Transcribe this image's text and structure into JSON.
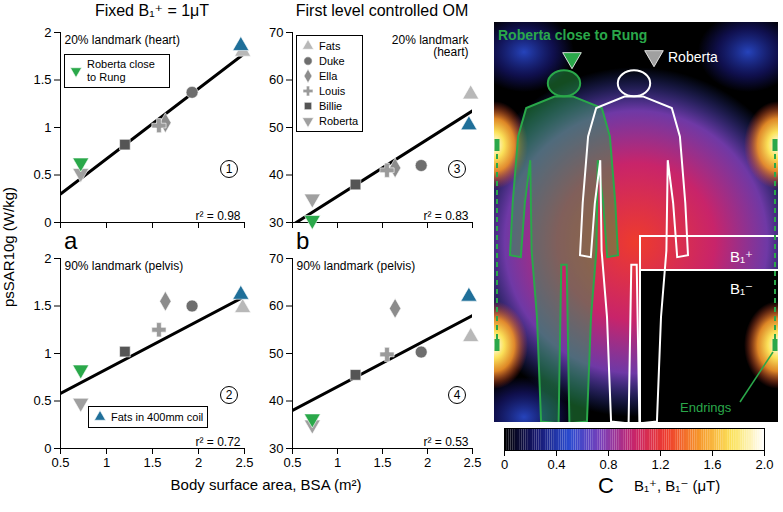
{
  "chart_data": [
    {
      "type": "scatter",
      "title": "20% landmark (heart)",
      "panel_number": "1",
      "r2_label": "r² = 0.98",
      "xlim": [
        0.5,
        2.5
      ],
      "xticks": [
        0.5,
        1,
        1.5,
        2,
        2.5
      ],
      "ylim": [
        0,
        2
      ],
      "yticks": [
        0,
        0.5,
        1,
        1.5,
        2
      ],
      "tick_labels": "y",
      "grid": false,
      "legend": "top-left",
      "legend_items": [
        "Roberta close to Rung"
      ],
      "series": [
        {
          "name": "Fats",
          "color": "#b8b8b8",
          "marker": "triangle",
          "x": [
            2.48
          ],
          "values": [
            1.8
          ]
        },
        {
          "name": "Duke",
          "color": "#6e6e6e",
          "marker": "circle",
          "x": [
            1.93
          ],
          "values": [
            1.37
          ]
        },
        {
          "name": "Ella",
          "color": "#8c8c8c",
          "marker": "diamond",
          "x": [
            1.64
          ],
          "values": [
            1.05
          ]
        },
        {
          "name": "Louis",
          "color": "#9a9a9a",
          "marker": "plus",
          "x": [
            1.57
          ],
          "values": [
            1.02
          ]
        },
        {
          "name": "Billie",
          "color": "#555555",
          "marker": "square",
          "x": [
            1.2
          ],
          "values": [
            0.82
          ]
        },
        {
          "name": "Roberta",
          "color": "#a0a0a0",
          "marker": "triangle-down",
          "x": [
            0.72
          ],
          "values": [
            0.52
          ]
        },
        {
          "name": "Roberta close to Rung",
          "color": "#2aa84a",
          "marker": "triangle-down",
          "x": [
            0.72
          ],
          "values": [
            0.63
          ]
        },
        {
          "name": "Fats in 400mm coil",
          "color": "#1f6f99",
          "marker": "triangle",
          "x": [
            2.46
          ],
          "values": [
            1.86
          ]
        }
      ],
      "fit": {
        "x": [
          0.5,
          2.5
        ],
        "values": [
          0.3,
          1.78
        ],
        "color": "#000000"
      }
    },
    {
      "type": "scatter",
      "title": "90% landmark (pelvis)",
      "panel_number": "2",
      "r2_label": "r² = 0.72",
      "xlim": [
        0.5,
        2.5
      ],
      "xticks": [
        0.5,
        1,
        1.5,
        2,
        2.5
      ],
      "ylim": [
        0,
        2
      ],
      "yticks": [
        0,
        0.5,
        1,
        1.5,
        2
      ],
      "grid": false,
      "legend": "bottom-left",
      "legend_items": [
        "Fats in 400mm coil"
      ],
      "series": [
        {
          "name": "Fats",
          "color": "#b8b8b8",
          "marker": "triangle",
          "x": [
            2.48
          ],
          "values": [
            1.48
          ]
        },
        {
          "name": "Duke",
          "color": "#6e6e6e",
          "marker": "circle",
          "x": [
            1.93
          ],
          "values": [
            1.5
          ]
        },
        {
          "name": "Ella",
          "color": "#8c8c8c",
          "marker": "diamond",
          "x": [
            1.64
          ],
          "values": [
            1.55
          ]
        },
        {
          "name": "Louis",
          "color": "#9a9a9a",
          "marker": "plus",
          "x": [
            1.57
          ],
          "values": [
            1.25
          ]
        },
        {
          "name": "Billie",
          "color": "#555555",
          "marker": "square",
          "x": [
            1.2
          ],
          "values": [
            1.02
          ]
        },
        {
          "name": "Roberta",
          "color": "#a0a0a0",
          "marker": "triangle-down",
          "x": [
            0.72
          ],
          "values": [
            0.48
          ]
        },
        {
          "name": "Roberta close to Rung",
          "color": "#2aa84a",
          "marker": "triangle-down",
          "x": [
            0.72
          ],
          "values": [
            0.83
          ]
        },
        {
          "name": "Fats in 400mm coil",
          "color": "#1f6f99",
          "marker": "triangle",
          "x": [
            2.46
          ],
          "values": [
            1.62
          ]
        }
      ],
      "fit": {
        "x": [
          0.5,
          2.5
        ],
        "values": [
          0.58,
          1.6
        ],
        "color": "#000000"
      }
    },
    {
      "type": "scatter",
      "title": "20% landmark (heart)",
      "panel_number": "3",
      "r2_label": "r² = 0.83",
      "xlim": [
        0.5,
        2.5
      ],
      "xticks": [
        0.5,
        1,
        1.5,
        2,
        2.5
      ],
      "ylim": [
        30,
        70
      ],
      "yticks": [
        30,
        40,
        50,
        60,
        70
      ],
      "tick_labels": "y",
      "grid": false,
      "legend": "top-left",
      "legend_items": [
        "Fats",
        "Duke",
        "Ella",
        "Louis",
        "Billie",
        "Roberta"
      ],
      "series": [
        {
          "name": "Fats",
          "color": "#b8b8b8",
          "marker": "triangle",
          "x": [
            2.48
          ],
          "values": [
            57
          ]
        },
        {
          "name": "Duke",
          "color": "#6e6e6e",
          "marker": "circle",
          "x": [
            1.93
          ],
          "values": [
            42
          ]
        },
        {
          "name": "Ella",
          "color": "#8c8c8c",
          "marker": "diamond",
          "x": [
            1.64
          ],
          "values": [
            41.5
          ]
        },
        {
          "name": "Louis",
          "color": "#9a9a9a",
          "marker": "plus",
          "x": [
            1.55
          ],
          "values": [
            41
          ]
        },
        {
          "name": "Billie",
          "color": "#555555",
          "marker": "square",
          "x": [
            1.2
          ],
          "values": [
            38
          ]
        },
        {
          "name": "Roberta",
          "color": "#a0a0a0",
          "marker": "triangle-down",
          "x": [
            0.72
          ],
          "values": [
            35
          ]
        },
        {
          "name": "Roberta close to Rung",
          "color": "#2aa84a",
          "marker": "triangle-down",
          "x": [
            0.72
          ],
          "values": [
            30.5
          ]
        },
        {
          "name": "Fats in 400mm coil",
          "color": "#1f6f99",
          "marker": "triangle",
          "x": [
            2.46
          ],
          "values": [
            50.5
          ]
        }
      ],
      "fit": {
        "x": [
          0.5,
          2.5
        ],
        "values": [
          29.5,
          53.5
        ],
        "color": "#000000"
      }
    },
    {
      "type": "scatter",
      "title": "90% landmark (pelvis)",
      "panel_number": "4",
      "r2_label": "r² = 0.53",
      "xlim": [
        0.5,
        2.5
      ],
      "xticks": [
        0.5,
        1,
        1.5,
        2,
        2.5
      ],
      "ylim": [
        30,
        70
      ],
      "yticks": [
        30,
        40,
        50,
        60,
        70
      ],
      "grid": false,
      "series": [
        {
          "name": "Fats",
          "color": "#b8b8b8",
          "marker": "triangle",
          "x": [
            2.48
          ],
          "values": [
            53.5
          ]
        },
        {
          "name": "Duke",
          "color": "#6e6e6e",
          "marker": "circle",
          "x": [
            1.93
          ],
          "values": [
            50.3
          ]
        },
        {
          "name": "Ella",
          "color": "#8c8c8c",
          "marker": "diamond",
          "x": [
            1.64
          ],
          "values": [
            59.5
          ]
        },
        {
          "name": "Louis",
          "color": "#9a9a9a",
          "marker": "plus",
          "x": [
            1.55
          ],
          "values": [
            49.8
          ]
        },
        {
          "name": "Billie",
          "color": "#555555",
          "marker": "square",
          "x": [
            1.2
          ],
          "values": [
            45.5
          ]
        },
        {
          "name": "Roberta",
          "color": "#a0a0a0",
          "marker": "triangle-down",
          "x": [
            0.72
          ],
          "values": [
            35
          ]
        },
        {
          "name": "Roberta close to Rung",
          "color": "#2aa84a",
          "marker": "triangle-down",
          "x": [
            0.72
          ],
          "values": [
            36.3
          ]
        },
        {
          "name": "Fats in 400mm coil",
          "color": "#1f6f99",
          "marker": "triangle",
          "x": [
            2.46
          ],
          "values": [
            62
          ]
        }
      ],
      "fit": {
        "x": [
          0.5,
          2.5
        ],
        "values": [
          38,
          58
        ],
        "color": "#000000"
      }
    },
    {
      "type": "field_map",
      "xlabel": "B₁⁺, B₁⁻ (μT)",
      "labels": {
        "close": "Roberta close to Rung",
        "model": "Roberta",
        "b1plus": "B₁⁺",
        "b1minus": "B₁⁻",
        "endrings": "Endrings"
      },
      "markers": [
        {
          "name": "Roberta close to Rung",
          "color": "#2aa84a",
          "marker": "triangle-down"
        },
        {
          "name": "Roberta",
          "color": "#a0a0a0",
          "marker": "triangle-down"
        }
      ],
      "colorbar": {
        "range": [
          0,
          2
        ],
        "ticks": [
          0,
          0.4,
          0.8,
          1.2,
          1.6,
          {
            "value": 2,
            "label": "2.0"
          }
        ],
        "colors": [
          "#000000",
          "#16166e",
          "#2a4bd0",
          "#7b3fb8",
          "#c8246a",
          "#ee3b2c",
          "#f6962a",
          "#fbe25a",
          "#ffffff"
        ]
      }
    }
  ],
  "figure": {
    "column_titles": [
      "Fixed B₁⁺ = 1μT",
      "First level controlled OM"
    ],
    "ylabel": "psSAR10g (W/kg)",
    "xlabel": "Body surface area, BSA (m²)",
    "panel_letters": [
      "a",
      "b",
      "C"
    ]
  }
}
